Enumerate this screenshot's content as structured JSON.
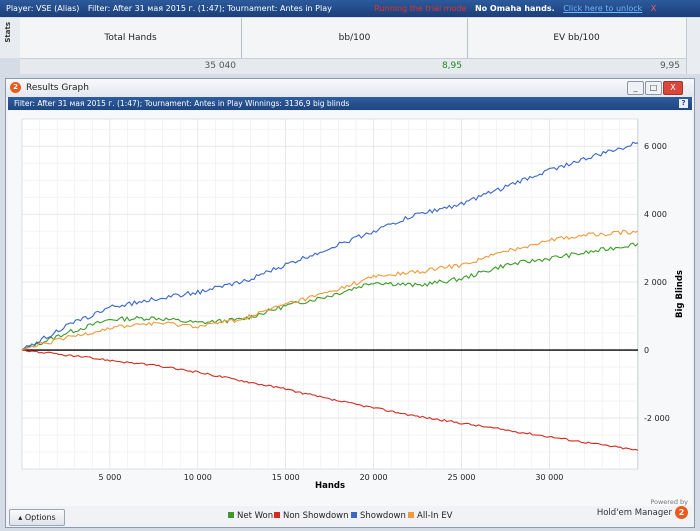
{
  "topbar": {
    "player": "Player: VSE (Alias)",
    "filter": "Filter: After 31 мая 2015 г. (1:47); Tournament: Antes in Play",
    "warning": "Running the trial mode",
    "no_omaha": "No Omaha hands.",
    "unlock": "Click here to unlock",
    "close": "X"
  },
  "stats": {
    "tab_label": "Stats",
    "headers": [
      "Total Hands",
      "bb/100",
      "EV bb/100"
    ],
    "values": [
      "35 040",
      "8,95",
      "9,95"
    ]
  },
  "window": {
    "title": "Results Graph",
    "logo": "2",
    "filter": "Filter: After 31 мая 2015 г. (1:47); Tournament: Antes in Play  Winnings: 3136,9 big blinds",
    "help": "?",
    "minimize": "_",
    "maximize": "□",
    "close": "X"
  },
  "legend": {
    "options": "Options",
    "items": [
      "Net Won",
      "Non Showdown",
      "Showdown",
      "All-In EV"
    ]
  },
  "powered": {
    "line1": "Powered by",
    "line2": "Hold'em Manager",
    "badge": "2"
  },
  "colors": {
    "net_won": "#3d9a2a",
    "non_showdown": "#d42b1e",
    "showdown": "#3a66c8",
    "allin_ev": "#ee9a3a",
    "accent": "#1f4680"
  },
  "chart_data": {
    "type": "line",
    "xlabel": "Hands",
    "ylabel": "Big Blinds",
    "xlim": [
      0,
      35040
    ],
    "ylim": [
      -3500,
      6800
    ],
    "xticks": [
      5000,
      10000,
      15000,
      20000,
      25000,
      30000
    ],
    "xtick_labels": [
      "5 000",
      "10 000",
      "15 000",
      "20 000",
      "25 000",
      "30 000"
    ],
    "yticks": [
      -2000,
      0,
      2000,
      4000,
      6000
    ],
    "ytick_labels": [
      "-2 000",
      "0",
      "2 000",
      "4 000",
      "6 000"
    ],
    "grid": true,
    "legend_position": "bottom",
    "x": [
      0,
      2500,
      5000,
      7500,
      10000,
      12500,
      15000,
      17500,
      20000,
      22500,
      25000,
      27500,
      30000,
      32500,
      35040
    ],
    "series": [
      {
        "name": "Net Won",
        "values": [
          0,
          500,
          900,
          950,
          800,
          900,
          1300,
          1600,
          2000,
          1900,
          2100,
          2500,
          2700,
          2900,
          3137
        ]
      },
      {
        "name": "Non Showdown",
        "values": [
          0,
          -150,
          -300,
          -450,
          -650,
          -900,
          -1150,
          -1450,
          -1700,
          -1950,
          -2150,
          -2350,
          -2550,
          -2750,
          -2950
        ]
      },
      {
        "name": "Showdown",
        "values": [
          0,
          700,
          1250,
          1500,
          1700,
          2000,
          2500,
          3000,
          3500,
          4000,
          4300,
          4800,
          5300,
          5700,
          6100
        ]
      },
      {
        "name": "All-In EV",
        "values": [
          0,
          350,
          650,
          800,
          700,
          900,
          1350,
          1700,
          2150,
          2300,
          2500,
          2900,
          3250,
          3400,
          3500
        ]
      }
    ]
  }
}
